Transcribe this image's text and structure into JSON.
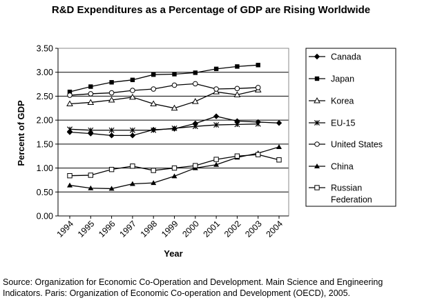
{
  "chart_data": {
    "type": "line",
    "title": "R&D Expenditures as a Percentage of GDP are Rising Worldwide",
    "xlabel": "Year",
    "ylabel": "Percent of GDP",
    "ylim": [
      0,
      3.5
    ],
    "yticks": [
      "0.00",
      "0.50",
      "1.00",
      "1.50",
      "2.00",
      "2.50",
      "3.00",
      "3.50"
    ],
    "x": [
      "1994",
      "1995",
      "1996",
      "1997",
      "1998",
      "1999",
      "2000",
      "2001",
      "2002",
      "2003",
      "2004"
    ],
    "grid": "horizontal",
    "legend_position": "right",
    "series": [
      {
        "name": "Canada",
        "marker": "diamond-filled",
        "values": [
          1.75,
          1.72,
          1.68,
          1.68,
          1.8,
          1.82,
          1.93,
          2.08,
          1.98,
          1.96,
          1.94
        ]
      },
      {
        "name": "Japan",
        "marker": "square-filled",
        "values": [
          2.59,
          2.7,
          2.79,
          2.84,
          2.95,
          2.96,
          2.99,
          3.07,
          3.12,
          3.15,
          null
        ]
      },
      {
        "name": "Korea",
        "marker": "triangle-open",
        "values": [
          2.34,
          2.37,
          2.42,
          2.48,
          2.34,
          2.25,
          2.39,
          2.59,
          2.53,
          2.63,
          null
        ]
      },
      {
        "name": "EU-15",
        "marker": "x-star",
        "values": [
          1.81,
          1.79,
          1.79,
          1.79,
          1.79,
          1.83,
          1.87,
          1.9,
          1.91,
          1.92,
          null
        ]
      },
      {
        "name": "United States",
        "marker": "circle-open",
        "values": [
          2.52,
          2.55,
          2.57,
          2.62,
          2.65,
          2.73,
          2.76,
          2.65,
          2.66,
          2.68,
          null
        ]
      },
      {
        "name": "China",
        "marker": "triangle-filled",
        "values": [
          0.64,
          0.58,
          0.57,
          0.67,
          0.69,
          0.83,
          1.0,
          1.07,
          1.22,
          1.31,
          1.44
        ]
      },
      {
        "name": "Russian Federation",
        "marker": "square-open",
        "values": [
          0.84,
          0.85,
          0.97,
          1.04,
          0.95,
          1.0,
          1.05,
          1.18,
          1.25,
          1.28,
          1.17
        ]
      }
    ],
    "legend_lines": [
      [
        "Canada"
      ],
      [
        "Japan"
      ],
      [
        "Korea"
      ],
      [
        "EU-15"
      ],
      [
        "United States"
      ],
      [
        "China"
      ],
      [
        "Russian",
        "Federation"
      ]
    ]
  },
  "source": {
    "line1": "Source: Organization for Economic Co-Operation and Development.  Main Science and Engineering",
    "line2": "Indicators.  Paris: Organization of Economic Co-operation and Development (OECD), 2005."
  }
}
